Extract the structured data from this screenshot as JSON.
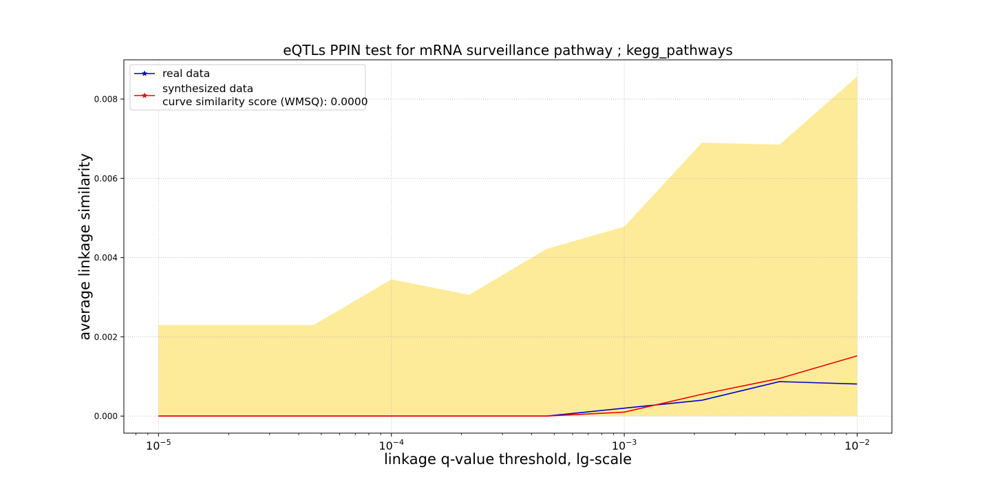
{
  "chart_data": {
    "type": "line",
    "title": "eQTLs PPIN test for mRNA surveillance pathway ; kegg_pathways",
    "xlabel": "linkage q-value threshold, lg-scale",
    "ylabel": "average linkage similarity",
    "x_scale": "log",
    "xlim": [
      7.1e-06,
      0.0141
    ],
    "ylim": [
      -0.00043,
      0.00899
    ],
    "grid": true,
    "legend_position": "top-left",
    "x_ticks": [
      {
        "value": 1e-05,
        "mantissa": "10",
        "exponent": "−5"
      },
      {
        "value": 0.0001,
        "mantissa": "10",
        "exponent": "−4"
      },
      {
        "value": 0.001,
        "mantissa": "10",
        "exponent": "−3"
      },
      {
        "value": 0.01,
        "mantissa": "10",
        "exponent": "−2"
      }
    ],
    "y_ticks": [
      {
        "value": 0.0,
        "label": "0.000"
      },
      {
        "value": 0.002,
        "label": "0.002"
      },
      {
        "value": 0.004,
        "label": "0.004"
      },
      {
        "value": 0.006,
        "label": "0.006"
      },
      {
        "value": 0.008,
        "label": "0.008"
      }
    ],
    "x": [
      1e-05,
      2.154e-05,
      4.642e-05,
      0.0001,
      0.0002154,
      0.0004642,
      0.001,
      0.002154,
      0.004642,
      0.01
    ],
    "band": {
      "color": "#fdeb9a",
      "lower": [
        0,
        0,
        0,
        0,
        0,
        0,
        0,
        0,
        0,
        0
      ],
      "upper": [
        0.0023,
        0.0023,
        0.0023,
        0.00345,
        0.00306,
        0.00422,
        0.00478,
        0.0069,
        0.00685,
        0.00857
      ]
    },
    "series": [
      {
        "name": "real data",
        "color": "#0000cc",
        "values": [
          0,
          0,
          0,
          0,
          0,
          0,
          0.0002,
          0.0004,
          0.00087,
          0.00081
        ]
      },
      {
        "name": "synthesized data\ncurve similarity score (WMSQ): 0.0000",
        "color": "#ee0000",
        "values": [
          0,
          0,
          0,
          0,
          0,
          0,
          0.0001,
          0.00055,
          0.00095,
          0.00152
        ]
      }
    ]
  }
}
